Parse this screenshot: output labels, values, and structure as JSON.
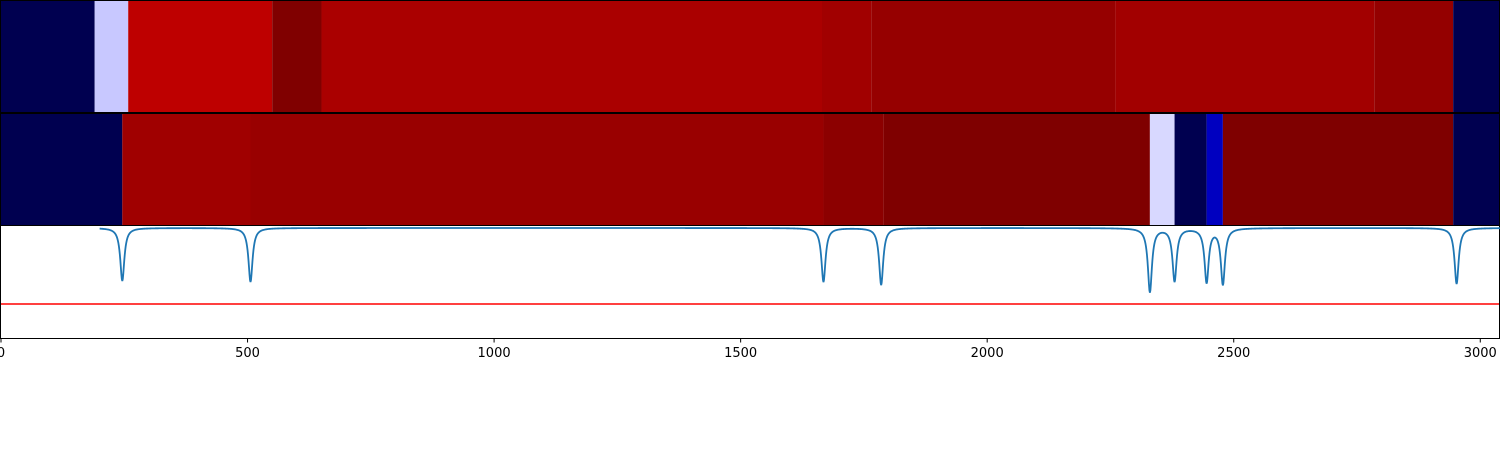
{
  "chart_data": [
    {
      "type": "heatmap",
      "title": "",
      "xlim": [
        0,
        3040
      ],
      "colormap": "seismic",
      "segments": [
        {
          "start": 0,
          "end": 190,
          "color": "#000050"
        },
        {
          "start": 190,
          "end": 258,
          "color": "#c8c8ff"
        },
        {
          "start": 258,
          "end": 550,
          "color": "#be0000"
        },
        {
          "start": 550,
          "end": 650,
          "color": "#800000"
        },
        {
          "start": 650,
          "end": 1665,
          "color": "#aa0000"
        },
        {
          "start": 1665,
          "end": 1765,
          "color": "#a10000"
        },
        {
          "start": 1765,
          "end": 2260,
          "color": "#960000"
        },
        {
          "start": 2260,
          "end": 2785,
          "color": "#a20000"
        },
        {
          "start": 2785,
          "end": 2945,
          "color": "#940000"
        },
        {
          "start": 2945,
          "end": 3040,
          "color": "#000050"
        }
      ]
    },
    {
      "type": "heatmap",
      "title": "",
      "xlim": [
        0,
        3040
      ],
      "colormap": "seismic",
      "segments": [
        {
          "start": 0,
          "end": 246,
          "color": "#000050"
        },
        {
          "start": 246,
          "end": 506,
          "color": "#a00000"
        },
        {
          "start": 506,
          "end": 1668,
          "color": "#990000"
        },
        {
          "start": 1668,
          "end": 1790,
          "color": "#8c0000"
        },
        {
          "start": 1790,
          "end": 2330,
          "color": "#7f0000"
        },
        {
          "start": 2330,
          "end": 2380,
          "color": "#d8d8ff"
        },
        {
          "start": 2380,
          "end": 2445,
          "color": "#000050"
        },
        {
          "start": 2445,
          "end": 2478,
          "color": "#0000c0"
        },
        {
          "start": 2478,
          "end": 2945,
          "color": "#7f0000"
        },
        {
          "start": 2945,
          "end": 3040,
          "color": "#000050"
        }
      ]
    },
    {
      "type": "line",
      "title": "",
      "xlabel": "",
      "ylabel": "",
      "xlim": [
        0,
        3040
      ],
      "ylim": [
        -1.1,
        0.02
      ],
      "grid": false,
      "xticks": [
        0,
        500,
        1000,
        1500,
        2000,
        2500,
        3000
      ],
      "xtick_labels": [
        "0",
        "500",
        "1000",
        "1500",
        "2000",
        "2500",
        "3000"
      ],
      "series": [
        {
          "color": "#1f77b4",
          "baseline": 0,
          "dips": [
            {
              "x": 246,
              "depth": 0.53
            },
            {
              "x": 506,
              "depth": 0.54
            },
            {
              "x": 1668,
              "depth": 0.54
            },
            {
              "x": 1785,
              "depth": 0.57
            },
            {
              "x": 2330,
              "depth": 0.64
            },
            {
              "x": 2380,
              "depth": 0.53
            },
            {
              "x": 2445,
              "depth": 0.54
            },
            {
              "x": 2478,
              "depth": 0.56
            },
            {
              "x": 2952,
              "depth": 0.56
            }
          ]
        },
        {
          "color": "#ff0000",
          "constant": -0.76
        }
      ]
    }
  ]
}
